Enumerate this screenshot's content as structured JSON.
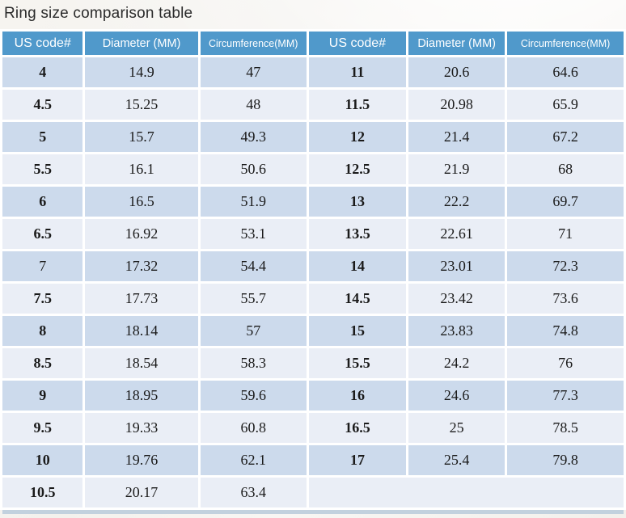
{
  "title": "Ring size comparison table",
  "colors": {
    "header_bg": "#5099cb",
    "row_dark": "#ccdaec",
    "row_light": "#eaeef6",
    "header_text": "#ffffff",
    "body_text": "#1a1a1a"
  },
  "table": {
    "headers": [
      "US code#",
      "Diameter (MM)",
      "Circumference(MM)",
      "US code#",
      "Diameter (MM)",
      "Circumference(MM)"
    ],
    "rows": [
      {
        "l": [
          "4",
          "14.9",
          "47"
        ],
        "r": [
          "11",
          "20.6",
          "64.6"
        ]
      },
      {
        "l": [
          "4.5",
          "15.25",
          "48"
        ],
        "r": [
          "11.5",
          "20.98",
          "65.9"
        ]
      },
      {
        "l": [
          "5",
          "15.7",
          "49.3"
        ],
        "r": [
          "12",
          "21.4",
          "67.2"
        ]
      },
      {
        "l": [
          "5.5",
          "16.1",
          "50.6"
        ],
        "r": [
          "12.5",
          "21.9",
          "68"
        ]
      },
      {
        "l": [
          "6",
          "16.5",
          "51.9"
        ],
        "r": [
          "13",
          "22.2",
          "69.7"
        ]
      },
      {
        "l": [
          "6.5",
          "16.92",
          "53.1"
        ],
        "r": [
          "13.5",
          "22.61",
          "71"
        ]
      },
      {
        "l": [
          "7",
          "17.32",
          "54.4"
        ],
        "r": [
          "14",
          "23.01",
          "72.3"
        ],
        "l_code_bold": false
      },
      {
        "l": [
          "7.5",
          "17.73",
          "55.7"
        ],
        "r": [
          "14.5",
          "23.42",
          "73.6"
        ]
      },
      {
        "l": [
          "8",
          "18.14",
          "57"
        ],
        "r": [
          "15",
          "23.83",
          "74.8"
        ]
      },
      {
        "l": [
          "8.5",
          "18.54",
          "58.3"
        ],
        "r": [
          "15.5",
          "24.2",
          "76"
        ]
      },
      {
        "l": [
          "9",
          "18.95",
          "59.6"
        ],
        "r": [
          "16",
          "24.6",
          "77.3"
        ]
      },
      {
        "l": [
          "9.5",
          "19.33",
          "60.8"
        ],
        "r": [
          "16.5",
          "25",
          "78.5"
        ]
      },
      {
        "l": [
          "10",
          "19.76",
          "62.1"
        ],
        "r": [
          "17",
          "25.4",
          "79.8"
        ]
      },
      {
        "l": [
          "10.5",
          "20.17",
          "63.4"
        ],
        "r": null
      }
    ]
  }
}
